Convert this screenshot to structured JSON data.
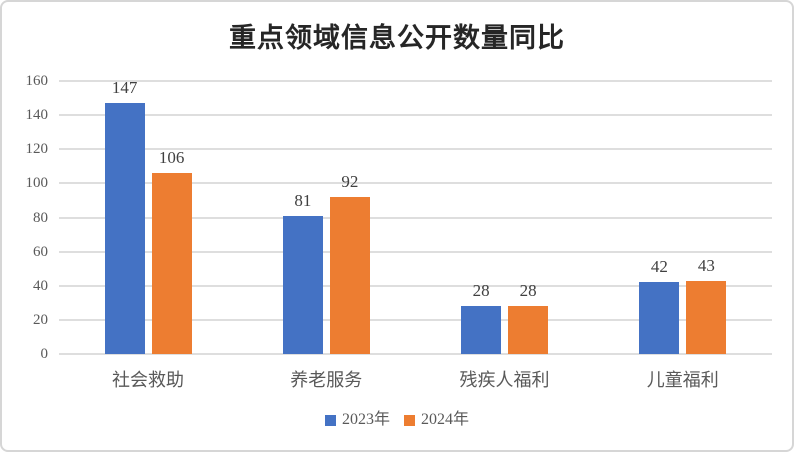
{
  "chart": {
    "colors": {
      "series_2023": "#4472C4",
      "series_2024": "#ED7D31",
      "gridline": "#DEDEDE",
      "axis_text": "#595959",
      "data_label_text": "#404040",
      "title_text": "#262626",
      "frame_border": "#D6D6D6",
      "background": "#FFFFFF"
    }
  },
  "chart_data": {
    "type": "bar",
    "title": "重点领域信息公开数量同比",
    "xlabel": "",
    "ylabel": "",
    "categories": [
      "社会救助",
      "养老服务",
      "残疾人福利",
      "儿童福利"
    ],
    "series": [
      {
        "name": "2023年",
        "color": "#4472C4",
        "values": [
          147,
          81,
          28,
          42
        ]
      },
      {
        "name": "2024年",
        "color": "#ED7D31",
        "values": [
          106,
          92,
          28,
          43
        ]
      }
    ],
    "ylim": [
      0,
      160
    ],
    "ytick_step": 20,
    "yticks": [
      0,
      20,
      40,
      60,
      80,
      100,
      120,
      140,
      160
    ],
    "grid": true,
    "data_labels": true,
    "legend_position": "bottom"
  }
}
